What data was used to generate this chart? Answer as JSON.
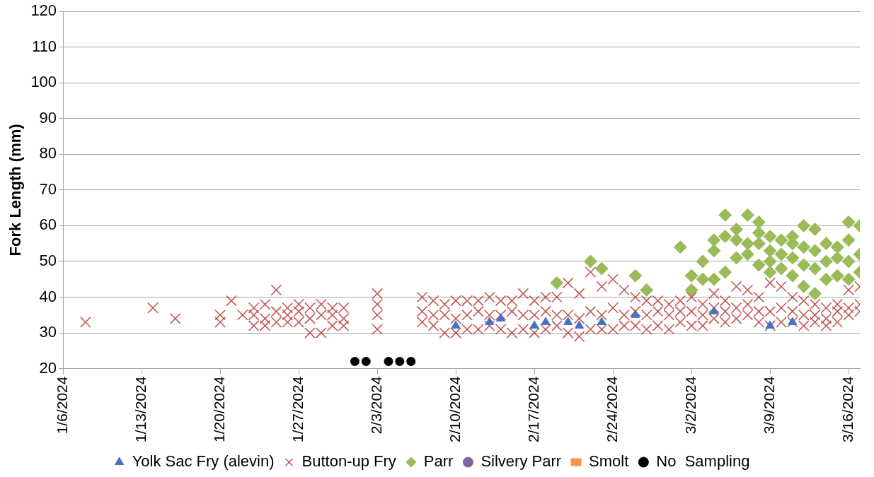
{
  "chart_data": {
    "type": "scatter",
    "ylabel": "Fork Length (mm)",
    "xlim": [
      "2024-01-06",
      "2024-03-17"
    ],
    "xticks": [
      {
        "value": "2024-01-06",
        "label": "1/6/2024"
      },
      {
        "value": "2024-01-13",
        "label": "1/13/2024"
      },
      {
        "value": "2024-01-20",
        "label": "1/20/2024"
      },
      {
        "value": "2024-01-27",
        "label": "1/27/2024"
      },
      {
        "value": "2024-02-03",
        "label": "2/3/2024"
      },
      {
        "value": "2024-02-10",
        "label": "2/10/2024"
      },
      {
        "value": "2024-02-17",
        "label": "2/17/2024"
      },
      {
        "value": "2024-02-24",
        "label": "2/24/2024"
      },
      {
        "value": "2024-03-02",
        "label": "3/2/2024"
      },
      {
        "value": "2024-03-09",
        "label": "3/9/2024"
      },
      {
        "value": "2024-03-16",
        "label": "3/16/2024"
      }
    ],
    "ylim": [
      20,
      120
    ],
    "yticks": [
      20,
      30,
      40,
      50,
      60,
      70,
      80,
      90,
      100,
      110,
      120
    ],
    "grid": "y",
    "legend": "bottom",
    "series": [
      {
        "name": "Yolk Sac Fry (alevin)",
        "color": "#4472c4",
        "marker": "triangle",
        "x": [
          "2024-02-10",
          "2024-02-13",
          "2024-02-14",
          "2024-02-17",
          "2024-02-18",
          "2024-02-20",
          "2024-02-21",
          "2024-02-23",
          "2024-02-26",
          "2024-03-04",
          "2024-03-09",
          "2024-03-11"
        ],
        "values": [
          32,
          33,
          34,
          32,
          33,
          33,
          32,
          33,
          35,
          36,
          32,
          33
        ]
      },
      {
        "name": "Button-up Fry",
        "color": "#c0504d",
        "marker": "cross",
        "x": [
          "2024-01-08",
          "2024-01-14",
          "2024-01-16",
          "2024-01-20",
          "2024-01-20",
          "2024-01-21",
          "2024-01-22",
          "2024-01-23",
          "2024-01-23",
          "2024-01-23",
          "2024-01-24",
          "2024-01-24",
          "2024-01-24",
          "2024-01-25",
          "2024-01-25",
          "2024-01-25",
          "2024-01-26",
          "2024-01-26",
          "2024-01-26",
          "2024-01-27",
          "2024-01-27",
          "2024-01-27",
          "2024-01-28",
          "2024-01-28",
          "2024-01-28",
          "2024-01-29",
          "2024-01-29",
          "2024-01-29",
          "2024-01-30",
          "2024-01-30",
          "2024-01-30",
          "2024-01-31",
          "2024-01-31",
          "2024-01-31",
          "2024-02-03",
          "2024-02-03",
          "2024-02-03",
          "2024-02-03",
          "2024-02-07",
          "2024-02-07",
          "2024-02-07",
          "2024-02-08",
          "2024-02-08",
          "2024-02-08",
          "2024-02-09",
          "2024-02-09",
          "2024-02-09",
          "2024-02-10",
          "2024-02-10",
          "2024-02-10",
          "2024-02-11",
          "2024-02-11",
          "2024-02-11",
          "2024-02-12",
          "2024-02-12",
          "2024-02-12",
          "2024-02-13",
          "2024-02-13",
          "2024-02-13",
          "2024-02-14",
          "2024-02-14",
          "2024-02-14",
          "2024-02-15",
          "2024-02-15",
          "2024-02-15",
          "2024-02-16",
          "2024-02-16",
          "2024-02-16",
          "2024-02-17",
          "2024-02-17",
          "2024-02-17",
          "2024-02-18",
          "2024-02-18",
          "2024-02-18",
          "2024-02-19",
          "2024-02-19",
          "2024-02-19",
          "2024-02-20",
          "2024-02-20",
          "2024-02-20",
          "2024-02-21",
          "2024-02-21",
          "2024-02-21",
          "2024-02-22",
          "2024-02-22",
          "2024-02-22",
          "2024-02-23",
          "2024-02-23",
          "2024-02-23",
          "2024-02-24",
          "2024-02-24",
          "2024-02-24",
          "2024-02-25",
          "2024-02-25",
          "2024-02-25",
          "2024-02-26",
          "2024-02-26",
          "2024-02-26",
          "2024-02-27",
          "2024-02-27",
          "2024-02-27",
          "2024-02-28",
          "2024-02-28",
          "2024-02-28",
          "2024-02-29",
          "2024-02-29",
          "2024-02-29",
          "2024-03-01",
          "2024-03-01",
          "2024-03-01",
          "2024-03-02",
          "2024-03-02",
          "2024-03-02",
          "2024-03-03",
          "2024-03-03",
          "2024-03-03",
          "2024-03-04",
          "2024-03-04",
          "2024-03-04",
          "2024-03-05",
          "2024-03-05",
          "2024-03-05",
          "2024-03-06",
          "2024-03-06",
          "2024-03-06",
          "2024-03-07",
          "2024-03-07",
          "2024-03-07",
          "2024-03-08",
          "2024-03-08",
          "2024-03-08",
          "2024-03-09",
          "2024-03-09",
          "2024-03-09",
          "2024-03-10",
          "2024-03-10",
          "2024-03-10",
          "2024-03-11",
          "2024-03-11",
          "2024-03-11",
          "2024-03-12",
          "2024-03-12",
          "2024-03-12",
          "2024-03-13",
          "2024-03-13",
          "2024-03-13",
          "2024-03-14",
          "2024-03-14",
          "2024-03-14",
          "2024-03-15",
          "2024-03-15",
          "2024-03-15",
          "2024-03-16",
          "2024-03-16",
          "2024-03-16",
          "2024-03-17",
          "2024-03-17",
          "2024-03-17"
        ],
        "values": [
          33,
          37,
          34,
          33,
          35,
          39,
          35,
          32,
          35,
          37,
          32,
          34,
          38,
          33,
          36,
          42,
          33,
          35,
          37,
          33,
          36,
          38,
          30,
          34,
          37,
          30,
          35,
          38,
          32,
          35,
          37,
          32,
          34,
          37,
          31,
          35,
          38,
          41,
          33,
          36,
          40,
          32,
          35,
          39,
          30,
          35,
          38,
          30,
          34,
          39,
          31,
          35,
          39,
          31,
          36,
          39,
          32,
          35,
          40,
          31,
          35,
          39,
          30,
          36,
          39,
          31,
          35,
          41,
          30,
          35,
          39,
          31,
          36,
          40,
          32,
          35,
          40,
          30,
          35,
          44,
          29,
          34,
          41,
          31,
          36,
          47,
          31,
          35,
          43,
          31,
          37,
          45,
          32,
          35,
          42,
          32,
          36,
          40,
          31,
          35,
          39,
          32,
          36,
          39,
          31,
          35,
          38,
          33,
          36,
          39,
          32,
          36,
          40,
          32,
          35,
          38,
          34,
          37,
          41,
          33,
          36,
          39,
          34,
          37,
          43,
          35,
          38,
          42,
          33,
          36,
          40,
          32,
          36,
          44,
          33,
          37,
          43,
          33,
          36,
          40,
          32,
          35,
          39,
          33,
          35,
          38,
          32,
          34,
          37,
          33,
          36,
          38,
          35,
          37,
          42,
          36,
          38,
          43
        ]
      },
      {
        "name": "Parr",
        "color": "#9bbb59",
        "marker": "diamond",
        "x": [
          "2024-02-19",
          "2024-02-22",
          "2024-02-23",
          "2024-02-26",
          "2024-02-27",
          "2024-03-01",
          "2024-03-02",
          "2024-03-02",
          "2024-03-03",
          "2024-03-03",
          "2024-03-04",
          "2024-03-04",
          "2024-03-04",
          "2024-03-05",
          "2024-03-05",
          "2024-03-05",
          "2024-03-06",
          "2024-03-06",
          "2024-03-06",
          "2024-03-07",
          "2024-03-07",
          "2024-03-07",
          "2024-03-08",
          "2024-03-08",
          "2024-03-08",
          "2024-03-08",
          "2024-03-09",
          "2024-03-09",
          "2024-03-09",
          "2024-03-09",
          "2024-03-10",
          "2024-03-10",
          "2024-03-10",
          "2024-03-11",
          "2024-03-11",
          "2024-03-11",
          "2024-03-11",
          "2024-03-12",
          "2024-03-12",
          "2024-03-12",
          "2024-03-12",
          "2024-03-13",
          "2024-03-13",
          "2024-03-13",
          "2024-03-13",
          "2024-03-14",
          "2024-03-14",
          "2024-03-14",
          "2024-03-15",
          "2024-03-15",
          "2024-03-15",
          "2024-03-16",
          "2024-03-16",
          "2024-03-16",
          "2024-03-16",
          "2024-03-17",
          "2024-03-17",
          "2024-03-17"
        ],
        "values": [
          44,
          50,
          48,
          46,
          42,
          54,
          42,
          46,
          45,
          50,
          45,
          53,
          56,
          47,
          57,
          63,
          51,
          56,
          59,
          52,
          55,
          63,
          49,
          55,
          58,
          61,
          47,
          50,
          53,
          57,
          48,
          52,
          56,
          46,
          51,
          55,
          57,
          43,
          49,
          54,
          60,
          41,
          48,
          53,
          59,
          45,
          50,
          55,
          46,
          51,
          54,
          45,
          50,
          56,
          61,
          47,
          52,
          60
        ]
      },
      {
        "name": "Silvery Parr",
        "color": "#8064a2",
        "marker": "circle"
      },
      {
        "name": "Smolt",
        "color": "#f79646",
        "marker": "square"
      },
      {
        "name": "No  Sampling",
        "color": "#000000",
        "marker": "circle",
        "x": [
          "2024-02-01",
          "2024-02-02",
          "2024-02-04",
          "2024-02-05",
          "2024-02-06"
        ],
        "values": [
          22,
          22,
          22,
          22,
          22
        ]
      }
    ]
  }
}
